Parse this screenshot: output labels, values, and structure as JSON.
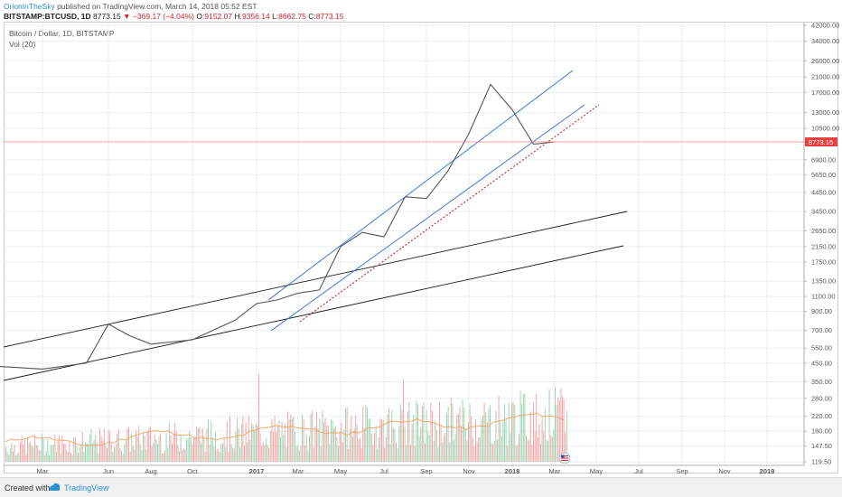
{
  "header": {
    "author": "OrionInTheSky",
    "published_text": "published on TradingView.com, March 14, 2018 05:52 EST",
    "symbol": "BITSTAMP:BTCUSD, 1D",
    "last": "8773.15",
    "change": "−369.17 (−4.04%)",
    "open_label": "O:",
    "open": "9152.07",
    "high_label": "H:",
    "high": "9356.14",
    "low_label": "L:",
    "low": "8662.75",
    "close_label": "C:",
    "close": "8773.15"
  },
  "legend": {
    "title": "Bitcoin / Dollar, 1D, BITSTAMP",
    "volume": "Vol (20)"
  },
  "footer": {
    "created_with": "Created with",
    "brand": "TradingView"
  },
  "colors": {
    "price": "#555555",
    "current_line": "#f08080",
    "current_badge": "#e8413d",
    "channel_blue": "#2f6fd8",
    "channel_black": "#1a1a1a",
    "dotted_support": "#d0242a",
    "vol_up": "#7fc89a",
    "vol_down": "#f08a8a",
    "vol_ma": "#f4a460"
  },
  "chart_data": {
    "type": "line",
    "title": "Bitcoin / Dollar, 1D, BITSTAMP",
    "y_scale": "log",
    "y_ticks": [
      "42000.00",
      "34000.00",
      "26000.00",
      "21000.00",
      "17000.00",
      "13000.00",
      "10500.00",
      "6900.00",
      "5650.00",
      "4450.00",
      "3450.00",
      "2650.00",
      "2150.00",
      "1750.00",
      "1350.00",
      "1100.00",
      "900.00",
      "700.00",
      "550.00",
      "450.00",
      "350.00",
      "280.00",
      "220.00",
      "180.00",
      "147.50",
      "119.50"
    ],
    "x_ticks": [
      "Mar",
      "Jun",
      "Aug",
      "Oct",
      "2017",
      "Mar",
      "May",
      "Jul",
      "Sep",
      "Nov",
      "2018",
      "Mar",
      "May",
      "Jul",
      "Sep",
      "Nov",
      "2019"
    ],
    "current_price_label": "8773.15",
    "price_series": {
      "name": "BTCUSD",
      "x": [
        "2016-01",
        "2016-03",
        "2016-05",
        "2016-06",
        "2016-07",
        "2016-08",
        "2016-10",
        "2016-12",
        "2017-01",
        "2017-02",
        "2017-03",
        "2017-04",
        "2017-05",
        "2017-06",
        "2017-07",
        "2017-08",
        "2017-09",
        "2017-10",
        "2017-11",
        "2017-12",
        "2018-01",
        "2018-02",
        "2018-03"
      ],
      "y": [
        430,
        415,
        450,
        760,
        650,
        580,
        615,
        800,
        1000,
        1050,
        1150,
        1200,
        2150,
        2600,
        2450,
        4200,
        4100,
        5900,
        9800,
        19000,
        13500,
        8500,
        8773
      ]
    },
    "volume_series": {
      "name": "Vol (20)"
    },
    "grid": true
  }
}
